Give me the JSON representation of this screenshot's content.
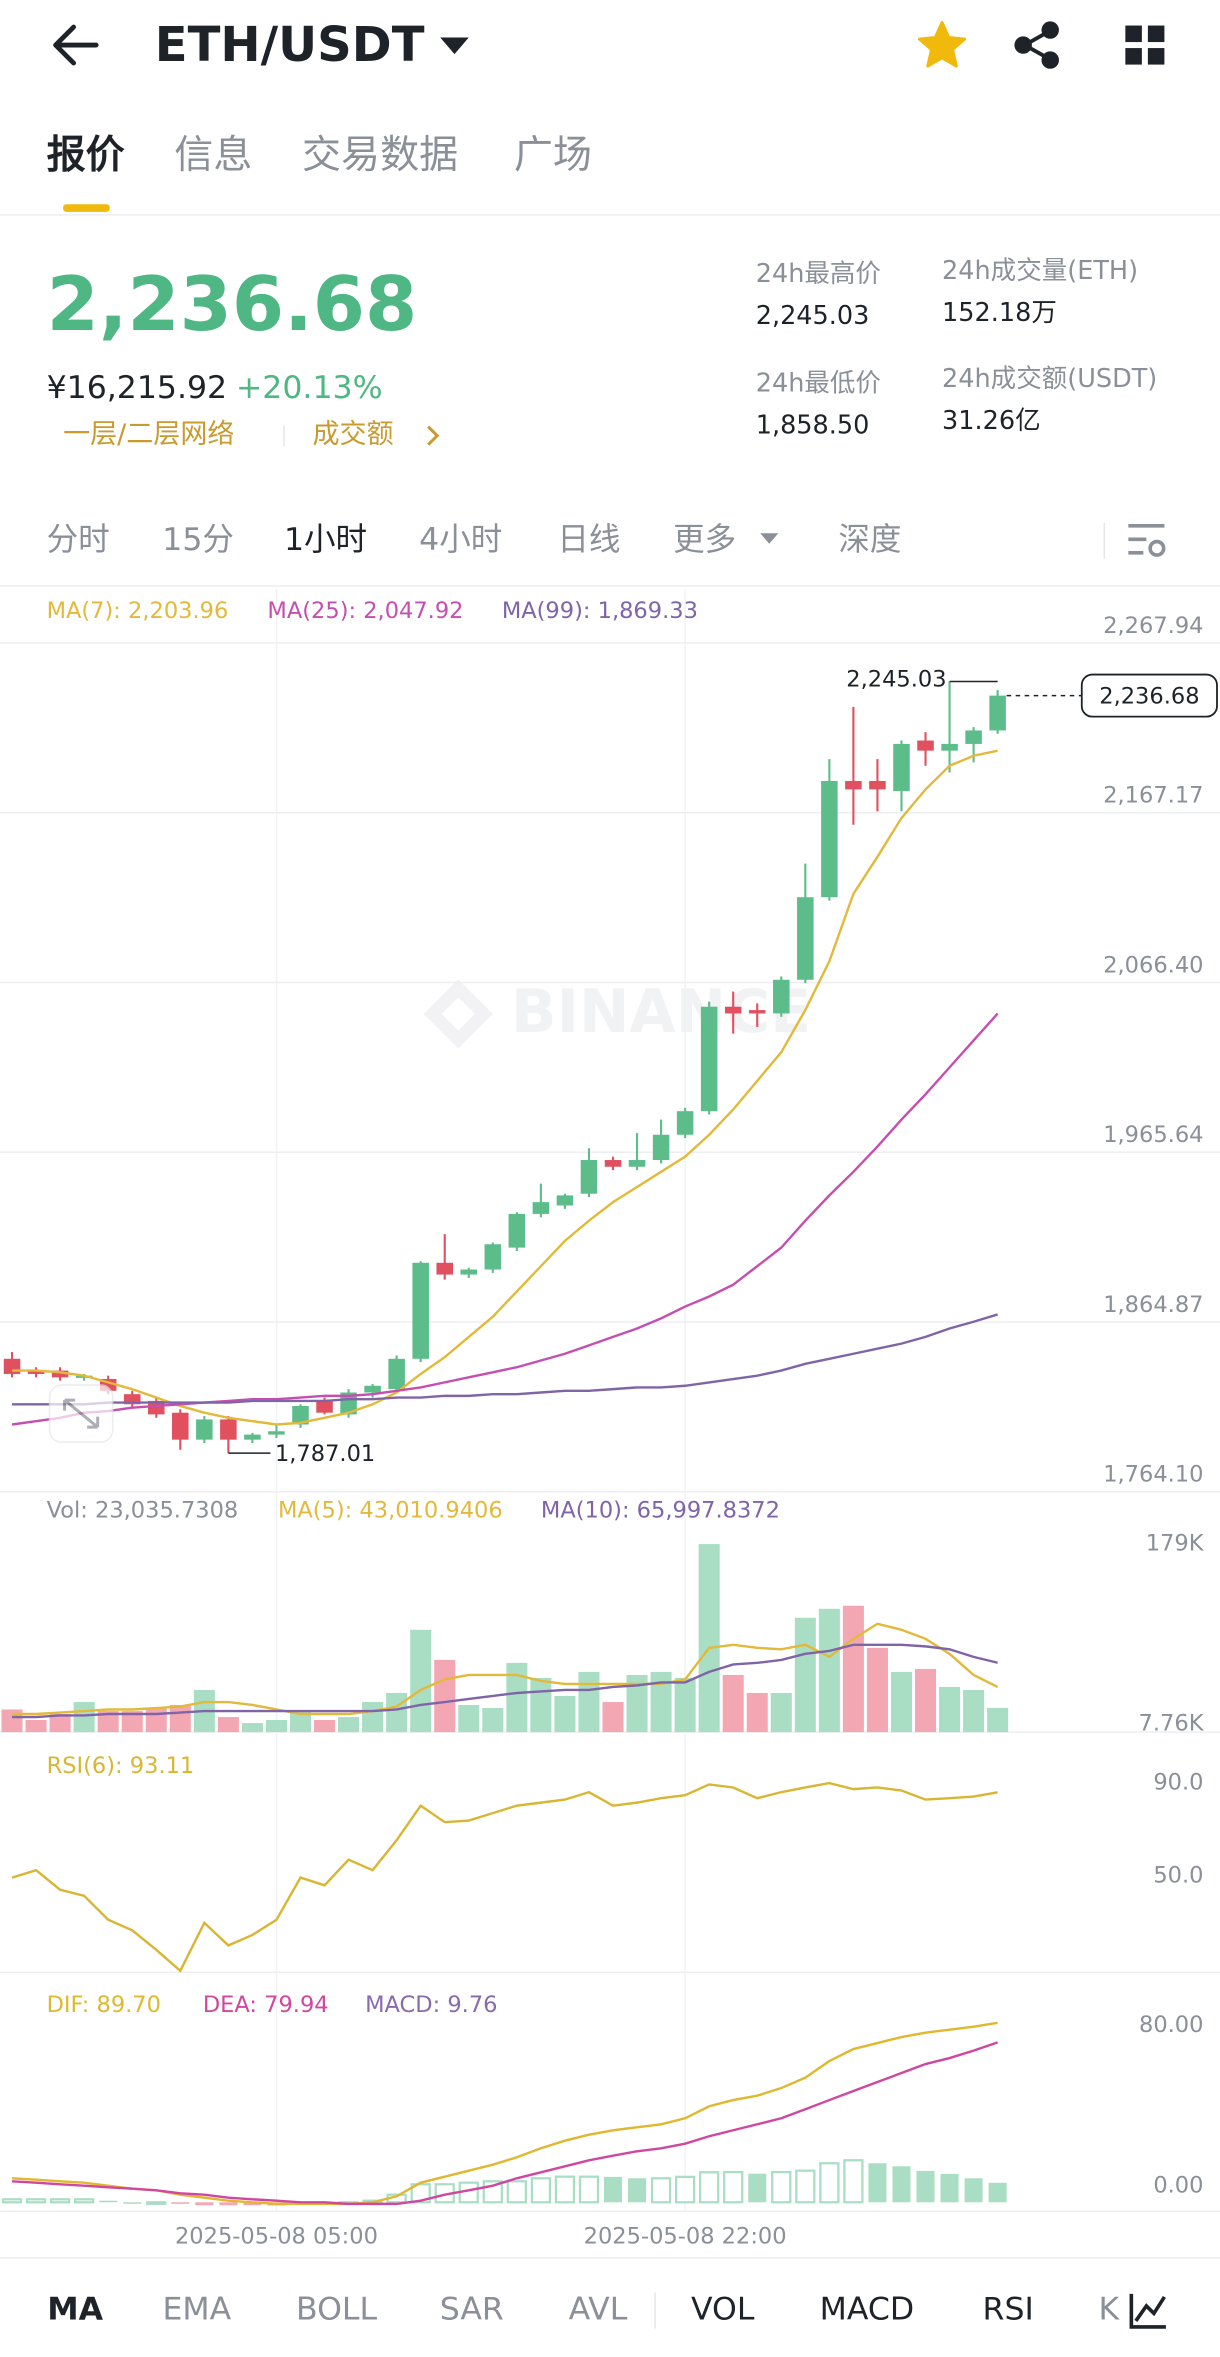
{
  "header": {
    "title": "ETH/USDT"
  },
  "tabs": [
    "报价",
    "信息",
    "交易数据",
    "广场"
  ],
  "ticker": {
    "price": "2,236.68",
    "cny": "¥16,215.92",
    "change": "+20.13%",
    "tags": [
      "一层/二层网络",
      "成交额"
    ]
  },
  "stats": [
    {
      "label": "24h最高价",
      "value": "2,245.03"
    },
    {
      "label": "24h成交量(ETH)",
      "value": "152.18万"
    },
    {
      "label": "24h最低价",
      "value": "1,858.50"
    },
    {
      "label": "24h成交额(USDT)",
      "value": "31.26亿"
    }
  ],
  "intervals": [
    "分时",
    "15分",
    "1小时",
    "4小时",
    "日线",
    "更多",
    "深度"
  ],
  "watermark": "BINANCE",
  "indicator_tabs": [
    "MA",
    "EMA",
    "BOLL",
    "SAR",
    "AVL",
    "VOL",
    "MACD",
    "RSI",
    "K"
  ],
  "chart_data": [
    {
      "type": "candlestick",
      "up_color": "#5cbd8b",
      "down_color": "#e0505f",
      "grid": true,
      "open": [
        1843,
        1836,
        1836,
        1832,
        1831,
        1822,
        1818,
        1811,
        1795,
        1807,
        1795,
        1798,
        1804,
        1818,
        1810,
        1823,
        1825,
        1843,
        1900,
        1893,
        1896,
        1909,
        1929,
        1934,
        1941,
        1961,
        1957,
        1961,
        1976,
        1990,
        2052,
        2050,
        2048,
        2068,
        2117,
        2186,
        2186,
        2180,
        2210,
        2204,
        2208,
        2216
      ],
      "high": [
        1847,
        1838,
        1838,
        1834,
        1833,
        1824,
        1820,
        1813,
        1809,
        1809,
        1799,
        1804,
        1816,
        1820,
        1825,
        1828,
        1845,
        1901,
        1917,
        1897,
        1912,
        1930,
        1947,
        1941,
        1968,
        1963,
        1977,
        1985,
        1992,
        2055,
        2061,
        2054,
        2070,
        2137,
        2199,
        2230,
        2199,
        2210,
        2215,
        2245.03,
        2218,
        2240
      ],
      "low": [
        1832,
        1832,
        1830,
        1830,
        1822,
        1814,
        1808,
        1789,
        1793,
        1787.01,
        1793,
        1796,
        1802,
        1810,
        1808,
        1820,
        1823,
        1841,
        1890,
        1891,
        1894,
        1907,
        1927,
        1932,
        1939,
        1955,
        1955,
        1959,
        1974,
        1988,
        2036,
        2040,
        2046,
        2066,
        2115,
        2160,
        2168,
        2168,
        2195,
        2191,
        2197,
        2214
      ],
      "close": [
        1834,
        1834,
        1832,
        1833,
        1824,
        1816,
        1810,
        1795,
        1807,
        1795,
        1798,
        1800,
        1815,
        1811,
        1823,
        1827,
        1843,
        1900,
        1893,
        1896,
        1911,
        1929,
        1936,
        1940,
        1961,
        1957,
        1961,
        1976,
        1990,
        2052,
        2048,
        2048,
        2068,
        2117,
        2186,
        2181,
        2181,
        2208,
        2204,
        2208,
        2216,
        2236.68
      ],
      "series": [
        {
          "name": "MA(7)",
          "label": "MA(7): 2,203.96",
          "color": "#e3b93b",
          "values": [
            1836,
            1836,
            1835,
            1833,
            1829,
            1825,
            1820,
            1815,
            1811,
            1808,
            1806,
            1804,
            1805,
            1808,
            1811,
            1816,
            1823,
            1834,
            1844,
            1856,
            1868,
            1883,
            1898,
            1913,
            1925,
            1936,
            1945,
            1954,
            1963,
            1976,
            1991,
            2008,
            2025,
            2050,
            2079,
            2119,
            2141,
            2164,
            2181,
            2195,
            2201,
            2203.96
          ]
        },
        {
          "name": "MA(25)",
          "label": "MA(25): 2,047.92",
          "color": "#c54fb0",
          "values": [
            1804,
            1806,
            1808,
            1811,
            1812,
            1814,
            1815,
            1816,
            1817,
            1818,
            1819,
            1819,
            1820,
            1821,
            1821,
            1822,
            1824,
            1826,
            1829,
            1832,
            1835,
            1838,
            1842,
            1846,
            1851,
            1856,
            1861,
            1867,
            1874,
            1880,
            1887,
            1898,
            1909,
            1925,
            1940,
            1954,
            1969,
            1985,
            2000,
            2016,
            2032,
            2047.92
          ]
        },
        {
          "name": "MA(99)",
          "label": "MA(99): 1,869.33",
          "color": "#8064a8",
          "values": [
            1816,
            1816,
            1816,
            1816,
            1817,
            1817,
            1817,
            1817,
            1817,
            1817,
            1818,
            1818,
            1818,
            1818,
            1819,
            1819,
            1820,
            1820,
            1821,
            1821,
            1822,
            1822,
            1823,
            1824,
            1824,
            1825,
            1826,
            1826,
            1827,
            1829,
            1831,
            1833,
            1836,
            1840,
            1843,
            1846,
            1849,
            1852,
            1856,
            1861,
            1865,
            1869.33
          ]
        }
      ],
      "ylim": [
        1764.1,
        2300.04
      ],
      "yticks": [
        {
          "value": 2267.94,
          "label": "2,267.94"
        },
        {
          "value": 2167.17,
          "label": "2,167.17"
        },
        {
          "value": 2066.4,
          "label": "2,066.40"
        },
        {
          "value": 1965.64,
          "label": "1,965.64"
        },
        {
          "value": 1864.87,
          "label": "1,864.87"
        },
        {
          "value": 1764.1,
          "label": "1,764.10"
        }
      ],
      "last_price": {
        "value": 2236.68,
        "label": "2,236.68"
      },
      "annotations": [
        {
          "index": 39,
          "field": "high",
          "label": "2,245.03"
        },
        {
          "index": 9,
          "field": "low",
          "label": "1,787.01"
        }
      ],
      "time_labels": [
        {
          "index": 11,
          "label": "2025-05-08 05:00"
        },
        {
          "index": 28,
          "label": "2025-05-08 22:00"
        }
      ]
    },
    {
      "type": "bar",
      "label": "Vol: 23,035.7308",
      "up_color": "#a9dec4",
      "down_color": "#f2a7b2",
      "grid": false,
      "values": [
        21500,
        11500,
        17200,
        28600,
        20000,
        20000,
        22900,
        25800,
        40100,
        14300,
        8600,
        11500,
        20000,
        11500,
        14300,
        28600,
        37200,
        97400,
        68700,
        25800,
        22900,
        65900,
        51600,
        34400,
        57300,
        28600,
        54400,
        57300,
        51600,
        179000,
        54400,
        37200,
        37200,
        108800,
        117400,
        120300,
        80200,
        57300,
        60100,
        43000,
        40100,
        23035.7308
      ],
      "series": [
        {
          "name": "MA(5)",
          "label": "MA(5): 43,010.9406",
          "color": "#e3b93b",
          "values": [
            17200,
            17200,
            18600,
            20000,
            21500,
            21500,
            22900,
            24300,
            28600,
            28600,
            25800,
            21500,
            17200,
            17200,
            17200,
            20000,
            24300,
            40100,
            50100,
            54400,
            54400,
            54400,
            48700,
            45800,
            45800,
            45800,
            45800,
            45800,
            50100,
            80200,
            83100,
            80200,
            78800,
            83100,
            71600,
            88800,
            103100,
            97400,
            88800,
            74500,
            54400,
            43010.9406
          ]
        },
        {
          "name": "MA(10)",
          "label": "MA(10): 65,997.8372",
          "color": "#8064a8",
          "values": [
            14300,
            14300,
            15800,
            15800,
            17200,
            17200,
            17200,
            18600,
            20000,
            20000,
            20000,
            20000,
            20000,
            20000,
            20000,
            20000,
            21500,
            25800,
            28600,
            31500,
            34400,
            37200,
            38700,
            40100,
            40100,
            43000,
            44400,
            47300,
            47300,
            57300,
            64400,
            65900,
            68700,
            74500,
            77300,
            83100,
            83100,
            83100,
            81600,
            78800,
            71600,
            65997.8372
          ]
        }
      ],
      "ylim": [
        0,
        226000
      ],
      "yticks": [
        {
          "value": 179000,
          "label": "179K"
        },
        {
          "value": 7760,
          "label": "7.76K"
        }
      ]
    },
    {
      "type": "line",
      "grid": false,
      "series": [
        {
          "name": "RSI(6)",
          "label": "RSI(6): 93.11",
          "color": "#d8b634",
          "values": [
            56.5,
            59.7,
            51.3,
            48.7,
            38.4,
            33.9,
            25.5,
            16.5,
            37.1,
            27.4,
            31.9,
            38.4,
            56.5,
            53.2,
            64.2,
            59.7,
            72.6,
            87.4,
            80.3,
            81.0,
            84.2,
            87.4,
            88.7,
            90.0,
            93.2,
            87.4,
            88.7,
            90.6,
            91.9,
            96.5,
            95.2,
            90.6,
            93.2,
            95.2,
            97.1,
            94.5,
            95.2,
            93.9,
            90.0,
            90.6,
            91.3,
            93.11
          ]
        }
      ],
      "ylim": [
        15.8,
        117.7
      ],
      "yticks": [
        {
          "value": 90,
          "label": "90.0"
        },
        {
          "value": 50,
          "label": "50.0"
        }
      ]
    },
    {
      "type": "macd",
      "grid": false,
      "series": [
        {
          "name": "DIF",
          "label": "DIF: 89.70",
          "color": "#e0b830",
          "values": [
            12.0,
            11.3,
            10.5,
            9.8,
            8.3,
            6.8,
            6.0,
            3.8,
            2.3,
            0.8,
            0,
            -0.8,
            -0.8,
            -0.8,
            -0.8,
            0,
            3.0,
            9.8,
            12.8,
            15.8,
            18.8,
            22.5,
            27.0,
            30.8,
            33.8,
            36.0,
            37.5,
            39.0,
            42.0,
            48.0,
            51.1,
            53.3,
            57.1,
            62.3,
            70.6,
            76.6,
            79.6,
            82.6,
            84.8,
            86.3,
            87.8,
            89.7
          ]
        },
        {
          "name": "DEA",
          "label": "DEA: 79.94",
          "color": "#d0479f",
          "values": [
            10.5,
            9.8,
            9.0,
            8.3,
            7.5,
            6.8,
            6.0,
            4.5,
            3.8,
            2.3,
            1.5,
            0.8,
            0,
            0,
            -0.8,
            -0.8,
            -0.8,
            0.8,
            3.8,
            6.0,
            8.3,
            12.0,
            15.0,
            18.0,
            21.0,
            23.3,
            25.5,
            27.0,
            29.3,
            33.0,
            36.0,
            39.0,
            42.0,
            46.5,
            51.1,
            55.6,
            60.1,
            64.6,
            69.1,
            72.1,
            75.8,
            79.94
          ]
        }
      ],
      "histogram": {
        "name": "MACD",
        "label": "MACD: 9.76",
        "color": "#8a6aab",
        "up_color": "#a9dec4",
        "down_color": "#f2a7b2",
        "values": [
          1.5,
          1.5,
          1.5,
          1.5,
          0.8,
          0,
          0,
          -0.7,
          -1.5,
          -1.5,
          -1.5,
          -1.6,
          -0.8,
          -0.8,
          0,
          0.8,
          3.8,
          9.0,
          9.0,
          9.8,
          10.5,
          10.5,
          12.0,
          12.8,
          12.8,
          12.7,
          12.0,
          12.0,
          12.7,
          15.0,
          15.1,
          14.3,
          15.1,
          15.8,
          19.5,
          21.0,
          19.5,
          18.0,
          15.7,
          14.2,
          12.0,
          9.76
        ]
      },
      "ylim": [
        -4.5,
        113.4
      ],
      "yticks": [
        {
          "value": 80,
          "label": "80.00"
        },
        {
          "value": 0,
          "label": "0.00"
        }
      ]
    }
  ]
}
